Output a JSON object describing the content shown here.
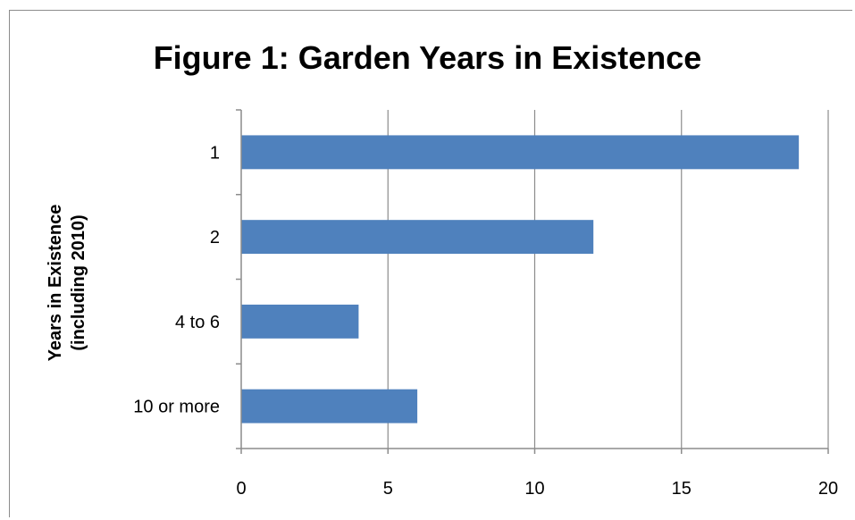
{
  "chart_data": {
    "type": "bar",
    "orientation": "horizontal",
    "title": "Figure 1: Garden Years in Existence",
    "ylabel_lines": [
      "Years in Existence",
      "(including 2010)"
    ],
    "xlabel": "",
    "categories": [
      "1",
      "2",
      "4 to 6",
      "10 or more"
    ],
    "values": [
      19,
      12,
      4,
      6
    ],
    "xlim": [
      0,
      20
    ],
    "xticks": [
      0,
      5,
      10,
      15,
      20
    ],
    "grid": "vertical",
    "legend": "none",
    "bar_color": "#4F81BD"
  }
}
